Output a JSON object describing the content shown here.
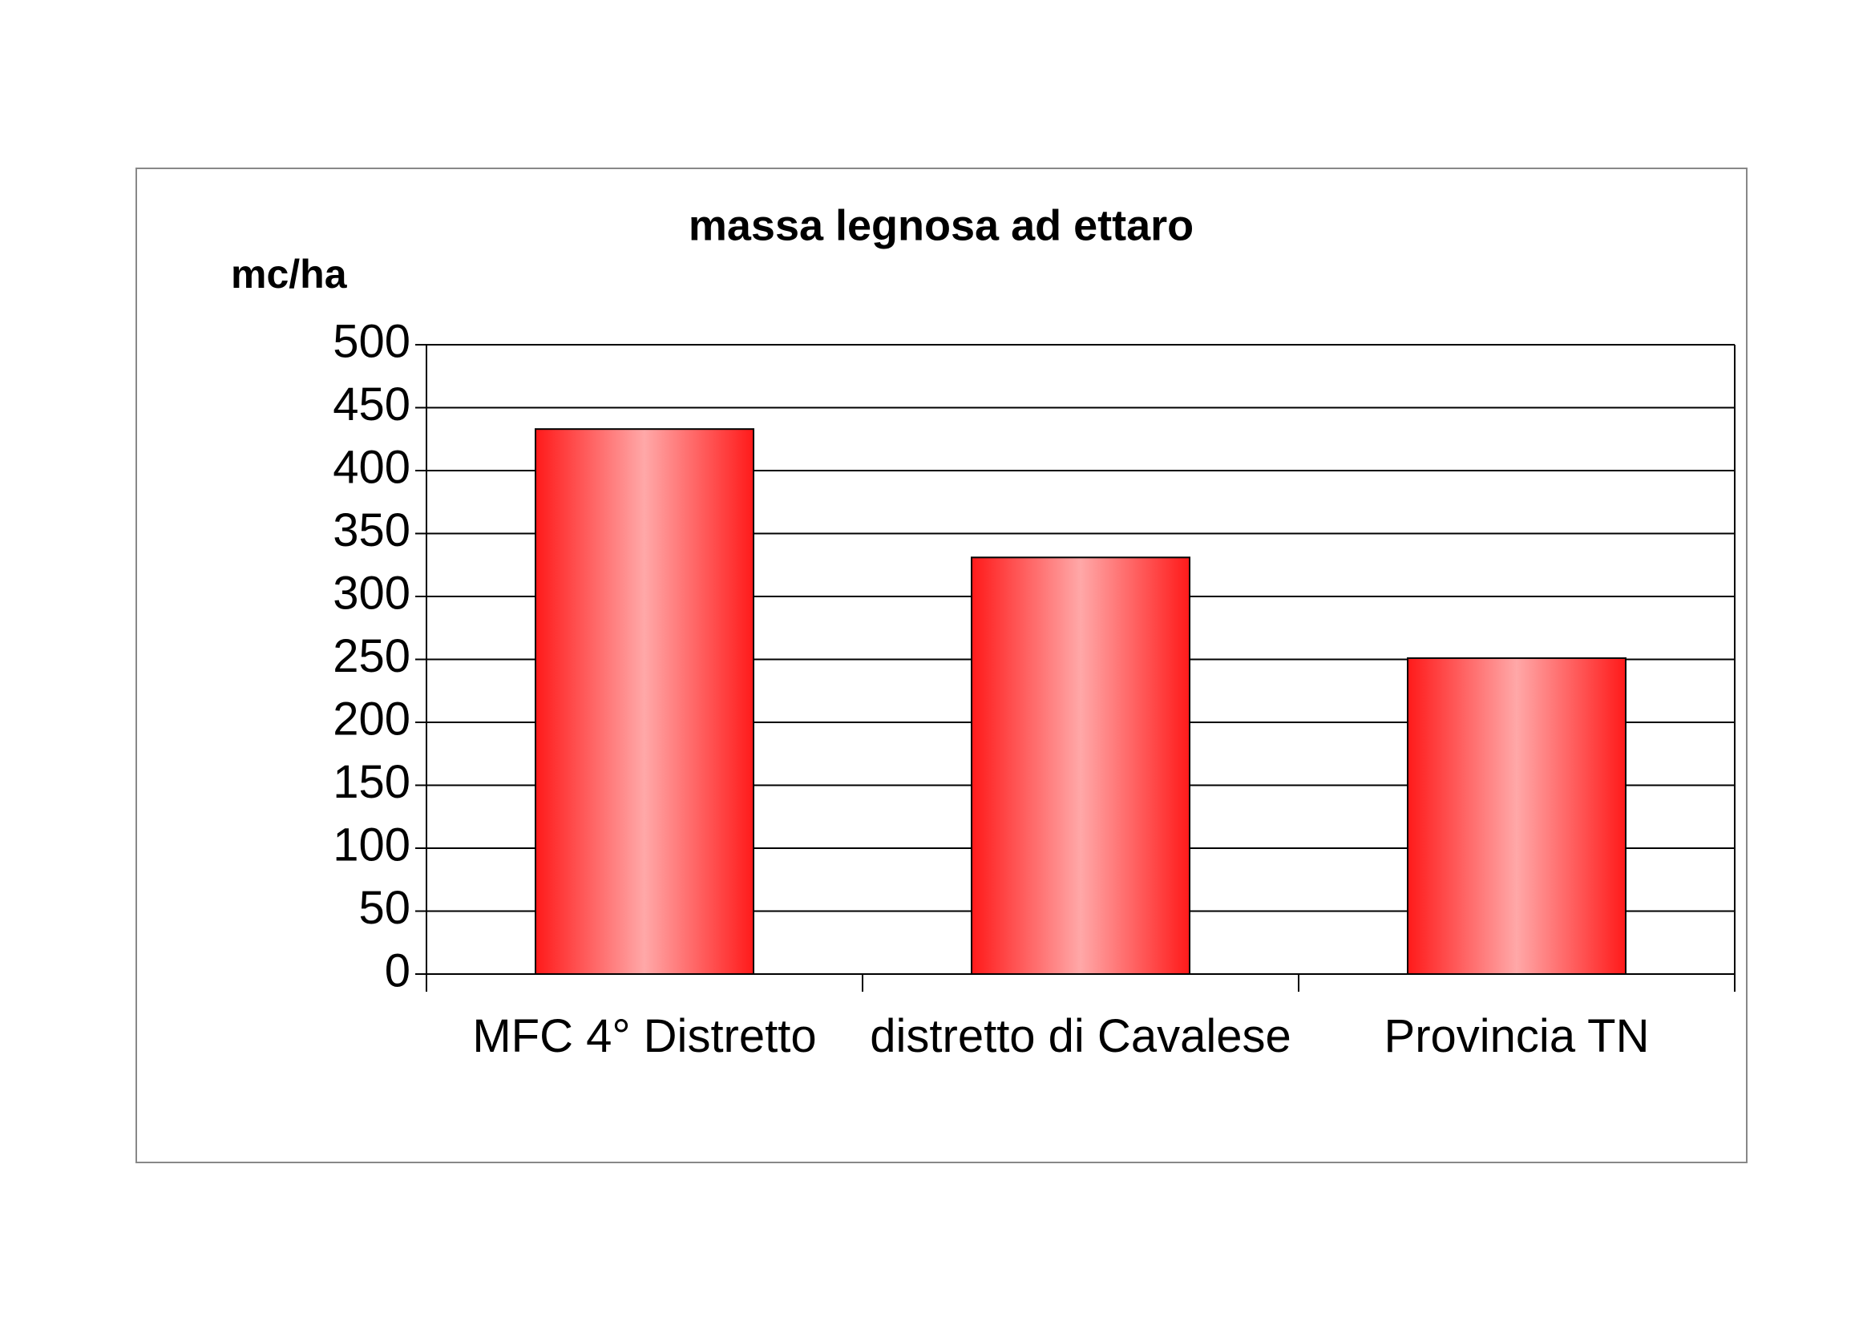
{
  "chart_data": {
    "type": "bar",
    "title": "massa legnosa ad ettaro",
    "y_label": "mc/ha",
    "categories": [
      "MFC 4° Distretto",
      "distretto di Cavalese",
      "Provincia TN"
    ],
    "values": [
      433,
      331,
      251
    ],
    "color": "#ff1a1a",
    "ylim": [
      0,
      500
    ],
    "yticks": [
      0,
      50,
      100,
      150,
      200,
      250,
      300,
      350,
      400,
      450,
      500
    ],
    "grid": true
  }
}
